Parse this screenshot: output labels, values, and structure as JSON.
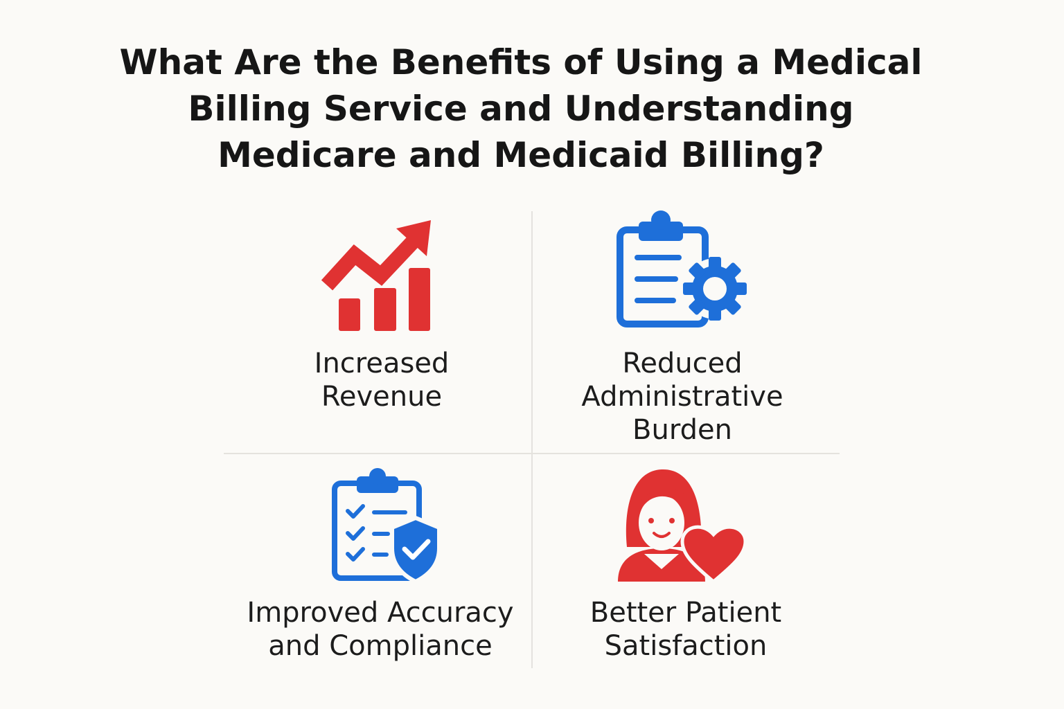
{
  "title": [
    "What Are the Benefits of Using a Medical",
    "Billing Service and Understanding",
    "Medicare and Medicaid Billing?"
  ],
  "benefits": [
    {
      "label": [
        "Increased",
        "Revenue"
      ]
    },
    {
      "label": [
        "Reduced",
        "Administrative",
        "Burden"
      ]
    },
    {
      "label": [
        "Improved Accuracy",
        "and Compliance"
      ]
    },
    {
      "label": [
        "Better Patient",
        "Satisfaction"
      ]
    }
  ]
}
